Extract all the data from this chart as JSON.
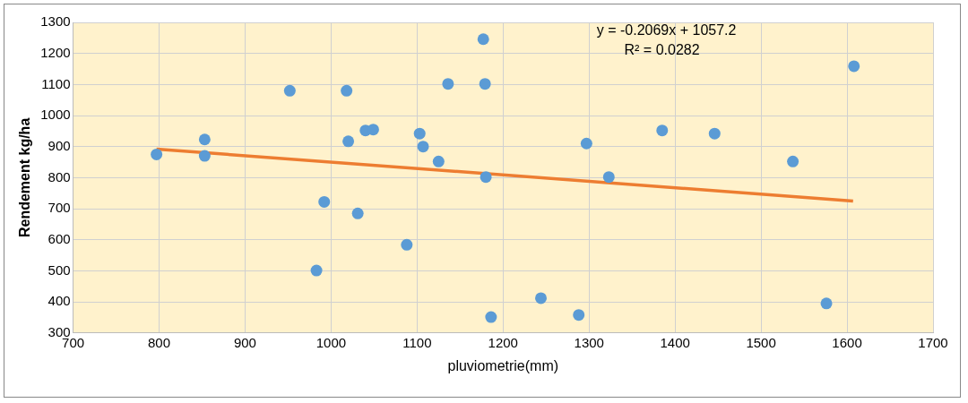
{
  "chart_data": {
    "type": "scatter",
    "xlabel": "pluviometrie(mm)",
    "ylabel": "Rendement kg/ha",
    "annotations": [
      "y = -0.2069x + 1057.2",
      "R² = 0.0282"
    ],
    "xlim": [
      700,
      1700
    ],
    "xticks": [
      700,
      800,
      900,
      1000,
      1100,
      1200,
      1300,
      1400,
      1500,
      1600,
      1700
    ],
    "ylim": [
      300,
      1300
    ],
    "yticks": [
      300,
      400,
      500,
      600,
      700,
      800,
      900,
      1000,
      1100,
      1200,
      1300
    ],
    "grid": true,
    "legend": false,
    "marker": "circle",
    "series": [
      {
        "color": "#5b9bd5",
        "x": [
          797,
          853,
          853,
          952,
          1018,
          1020,
          992,
          983,
          1031,
          1040,
          1049,
          1088,
          1103,
          1107,
          1125,
          1136,
          1177,
          1179,
          1180,
          1186,
          1244,
          1288,
          1297,
          1323,
          1385,
          1446,
          1537,
          1576,
          1608
        ],
        "values": [
          875,
          923,
          870,
          1080,
          1080,
          917,
          722,
          501,
          685,
          952,
          955,
          584,
          942,
          900,
          852,
          1102,
          1246,
          1102,
          802,
          351,
          412,
          358,
          910,
          802,
          952,
          942,
          852,
          395,
          1159
        ]
      },
      {
        "type": "line",
        "color": "#ed7d31",
        "marker": "none",
        "x": [
          797,
          1607
        ],
        "values": [
          892,
          725
        ]
      }
    ]
  }
}
